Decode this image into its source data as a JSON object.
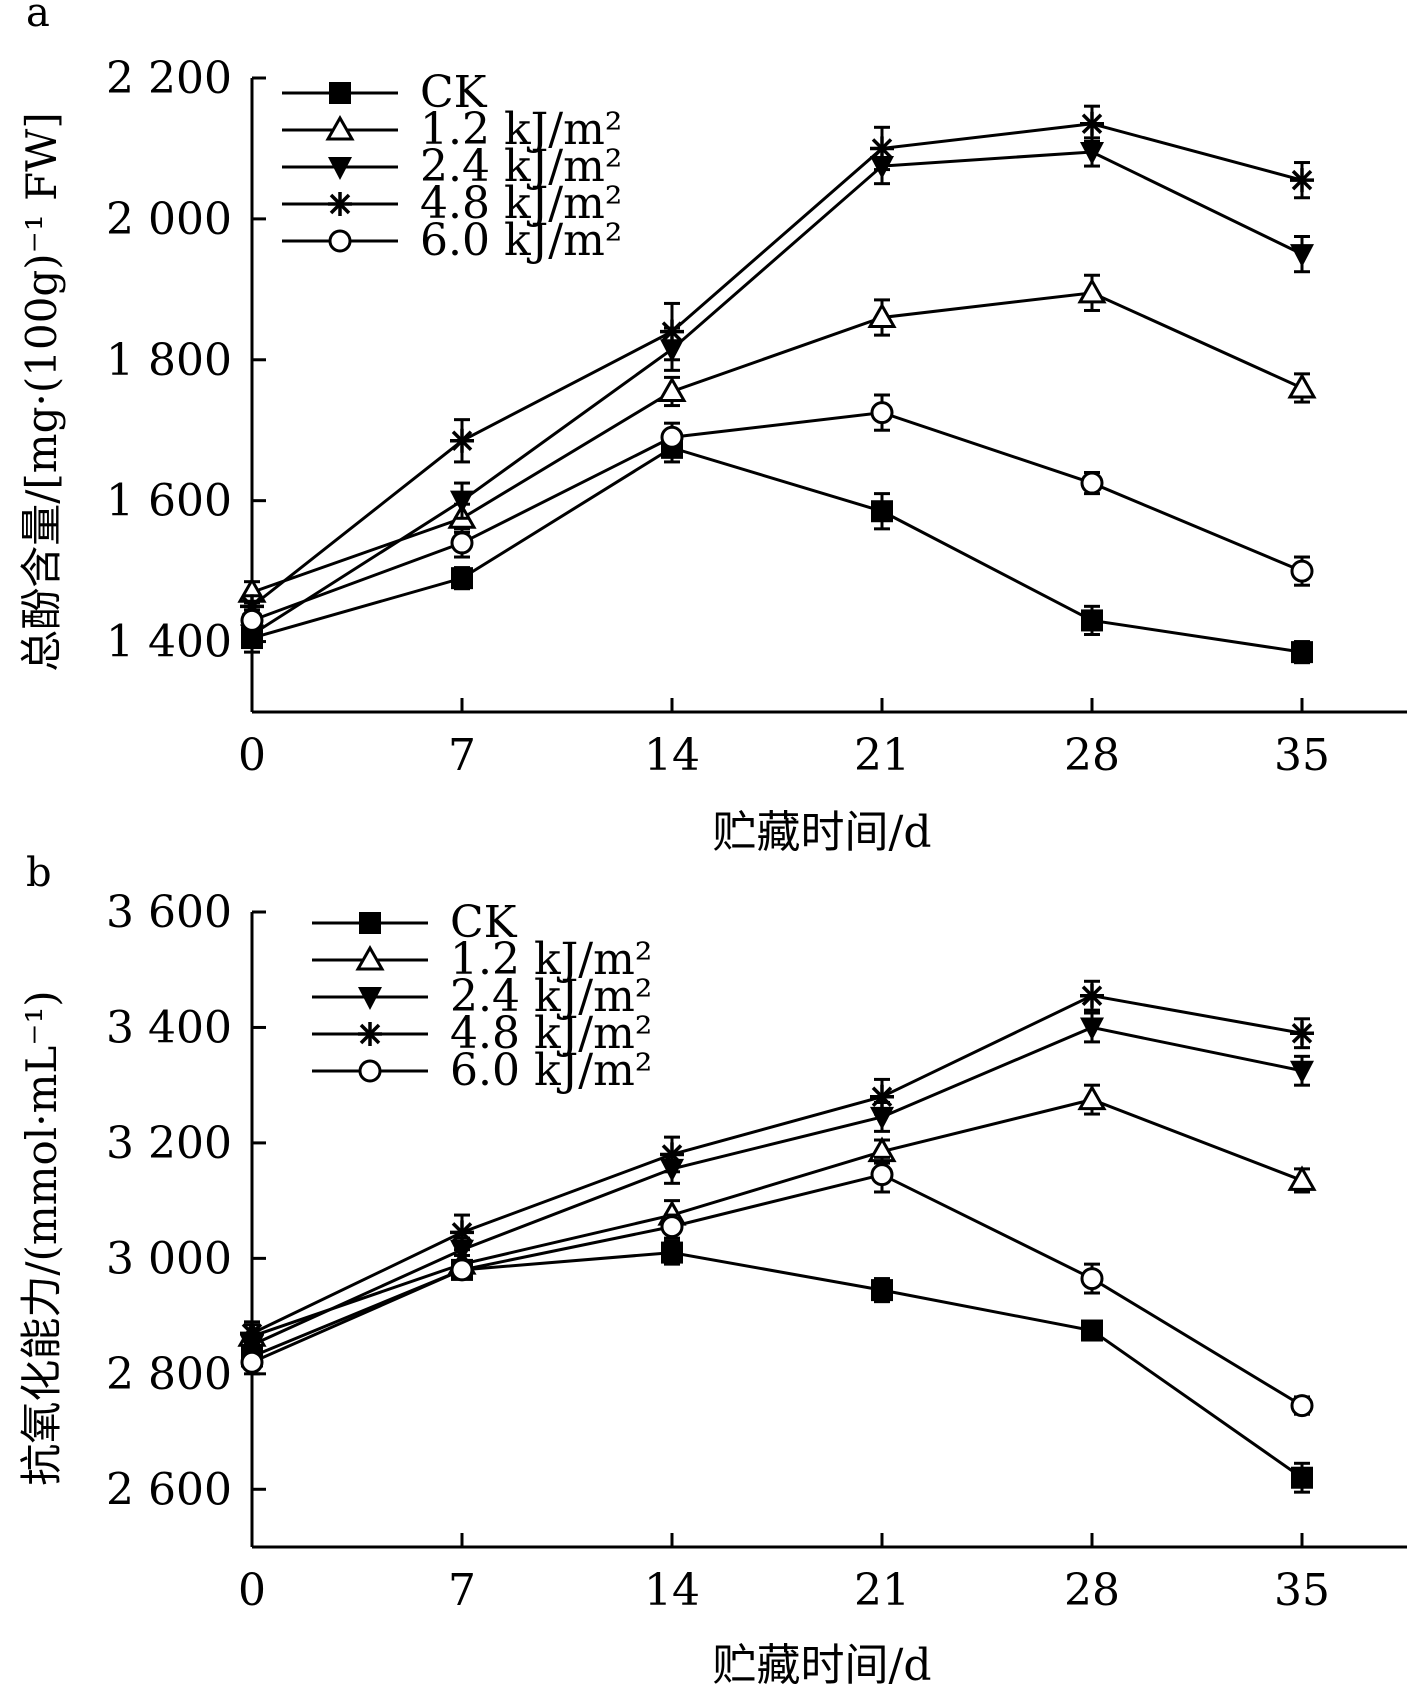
{
  "chart_data": [
    {
      "panel_label": "a",
      "type": "line",
      "xlabel": "贮藏时间/d",
      "ylabel": "总酚含量/[mg·(100g)⁻¹ FW]",
      "x": [
        0,
        7,
        14,
        21,
        28,
        35
      ],
      "xticks": [
        "0",
        "7",
        "14",
        "21",
        "28",
        "35"
      ],
      "xlim": [
        0,
        38.5
      ],
      "ylim": [
        1300,
        2200
      ],
      "yticks": [
        1400,
        1600,
        1800,
        2000,
        2200
      ],
      "ytick_labels": [
        "1 400",
        "1 600",
        "1 800",
        "2 000",
        "2 200"
      ],
      "legend_position": "top-left",
      "series": [
        {
          "name": "CK",
          "marker": "filled-square",
          "values": [
            1405,
            1490,
            1675,
            1585,
            1430,
            1385
          ],
          "errors": [
            20,
            15,
            20,
            25,
            20,
            15
          ]
        },
        {
          "name": "1.2 kJ/m²",
          "marker": "open-triangle-up",
          "values": [
            1470,
            1575,
            1755,
            1860,
            1895,
            1760
          ],
          "errors": [
            15,
            20,
            20,
            25,
            25,
            20
          ]
        },
        {
          "name": "2.4 kJ/m²",
          "marker": "filled-triangle-down",
          "values": [
            1410,
            1600,
            1815,
            2075,
            2095,
            1950
          ],
          "errors": [
            15,
            25,
            30,
            25,
            20,
            25
          ]
        },
        {
          "name": "4.8 kJ/m²",
          "marker": "asterisk",
          "values": [
            1450,
            1685,
            1840,
            2100,
            2135,
            2055
          ],
          "errors": [
            15,
            30,
            40,
            30,
            25,
            25
          ]
        },
        {
          "name": "6.0 kJ/m²",
          "marker": "open-circle",
          "values": [
            1430,
            1540,
            1690,
            1725,
            1625,
            1500
          ],
          "errors": [
            15,
            20,
            20,
            25,
            15,
            20
          ]
        }
      ]
    },
    {
      "panel_label": "b",
      "type": "line",
      "xlabel": "贮藏时间/d",
      "ylabel": "抗氧化能力/(mmol·mL⁻¹)",
      "x": [
        0,
        7,
        14,
        21,
        28,
        35
      ],
      "xticks": [
        "0",
        "7",
        "14",
        "21",
        "28",
        "35"
      ],
      "xlim": [
        0,
        38.5
      ],
      "ylim": [
        2500,
        3600
      ],
      "yticks": [
        2600,
        2800,
        3000,
        3200,
        3400,
        3600
      ],
      "ytick_labels": [
        "2 600",
        "2 800",
        "3 000",
        "3 200",
        "3 400",
        "3 600"
      ],
      "legend_position": "top-left",
      "series": [
        {
          "name": "CK",
          "marker": "filled-square",
          "values": [
            2830,
            2980,
            3010,
            2945,
            2875,
            2620
          ],
          "errors": [
            20,
            15,
            20,
            20,
            15,
            25
          ]
        },
        {
          "name": "1.2 kJ/m²",
          "marker": "open-triangle-up",
          "values": [
            2865,
            2990,
            3075,
            3185,
            3275,
            3135
          ],
          "errors": [
            20,
            15,
            25,
            20,
            25,
            20
          ]
        },
        {
          "name": "2.4 kJ/m²",
          "marker": "filled-triangle-down",
          "values": [
            2850,
            3015,
            3155,
            3245,
            3400,
            3325
          ],
          "errors": [
            20,
            20,
            25,
            25,
            25,
            25
          ]
        },
        {
          "name": "4.8 kJ/m²",
          "marker": "asterisk",
          "values": [
            2870,
            3045,
            3180,
            3280,
            3455,
            3390
          ],
          "errors": [
            20,
            30,
            30,
            30,
            25,
            25
          ]
        },
        {
          "name": "6.0 kJ/m²",
          "marker": "open-circle",
          "values": [
            2820,
            2980,
            3055,
            3145,
            2965,
            2745
          ],
          "errors": [
            20,
            15,
            20,
            30,
            25,
            15
          ]
        }
      ]
    }
  ]
}
